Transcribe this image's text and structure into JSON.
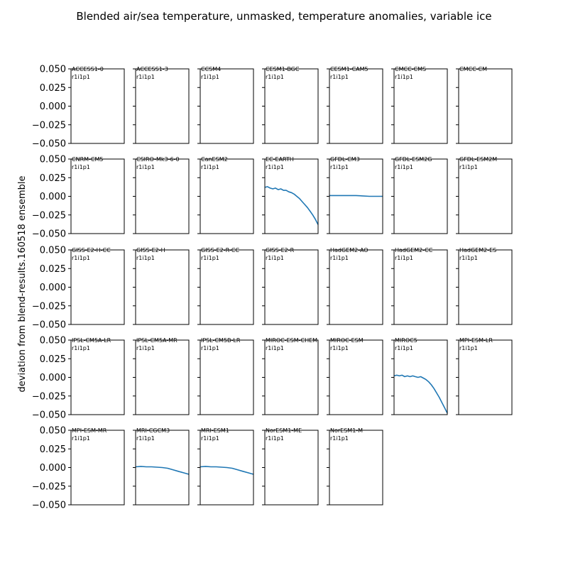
{
  "chart_data": {
    "type": "line",
    "title": "Blended air/sea temperature, unmasked, temperature anomalies, variable ice",
    "ylabel": "deviation from blend-results.160518 ensemble",
    "ylim": [
      -0.05,
      0.05
    ],
    "yticks": [
      "0.050",
      "0.025",
      "0.000",
      "−0.025",
      "−0.050"
    ],
    "ytick_values": [
      0.05,
      0.025,
      0.0,
      -0.025,
      -0.05
    ],
    "grid": false,
    "line_color": "#1f77b4",
    "panels": [
      {
        "model": "ACCESS1-0",
        "run": "r1i1p1",
        "series": []
      },
      {
        "model": "ACCESS1-3",
        "run": "r1i1p1",
        "series": []
      },
      {
        "model": "CCSM4",
        "run": "r1i1p1",
        "series": []
      },
      {
        "model": "CESM1-BGC",
        "run": "r1i1p1",
        "series": []
      },
      {
        "model": "CESM1-CAM5",
        "run": "r1i1p1",
        "series": []
      },
      {
        "model": "CMCC-CMS",
        "run": "r1i1p1",
        "series": []
      },
      {
        "model": "CMCC-CM",
        "run": "",
        "series": []
      },
      {
        "model": "CNRM-CM5",
        "run": "r1i1p1",
        "series": []
      },
      {
        "model": "CSIRO-Mk3-6-0",
        "run": "r1i1p1",
        "series": []
      },
      {
        "model": "CanESM2",
        "run": "r1i1p1",
        "series": []
      },
      {
        "model": "EC-EARTH",
        "run": "r1i1p1",
        "series": [
          [
            0.0,
            0.012
          ],
          [
            0.05,
            0.013
          ],
          [
            0.1,
            0.011
          ],
          [
            0.15,
            0.01
          ],
          [
            0.2,
            0.011
          ],
          [
            0.25,
            0.009
          ],
          [
            0.3,
            0.01
          ],
          [
            0.35,
            0.008
          ],
          [
            0.4,
            0.008
          ],
          [
            0.45,
            0.006
          ],
          [
            0.5,
            0.005
          ],
          [
            0.55,
            0.003
          ],
          [
            0.6,
            0.0
          ],
          [
            0.65,
            -0.003
          ],
          [
            0.7,
            -0.007
          ],
          [
            0.75,
            -0.011
          ],
          [
            0.8,
            -0.015
          ],
          [
            0.85,
            -0.02
          ],
          [
            0.9,
            -0.025
          ],
          [
            0.95,
            -0.031
          ],
          [
            1.0,
            -0.038
          ]
        ]
      },
      {
        "model": "GFDL-CM3",
        "run": "r1i1p1",
        "series": [
          [
            0.0,
            0.001
          ],
          [
            0.25,
            0.001
          ],
          [
            0.5,
            0.001
          ],
          [
            0.75,
            0.0
          ],
          [
            1.0,
            0.0
          ]
        ]
      },
      {
        "model": "GFDL-ESM2G",
        "run": "r1i1p1",
        "series": []
      },
      {
        "model": "GFDL-ESM2M",
        "run": "r1i1p1",
        "series": []
      },
      {
        "model": "GISS-E2-H-CC",
        "run": "r1i1p1",
        "series": []
      },
      {
        "model": "GISS-E2-H",
        "run": "r1i1p1",
        "series": []
      },
      {
        "model": "GISS-E2-R-CC",
        "run": "r1i1p1",
        "series": []
      },
      {
        "model": "GISS-E2-R",
        "run": "r1i1p1",
        "series": []
      },
      {
        "model": "HadGEM2-AO",
        "run": "r1i1p1",
        "series": []
      },
      {
        "model": "HadGEM2-CC",
        "run": "r1i1p1",
        "series": []
      },
      {
        "model": "HadGEM2-ES",
        "run": "r1i1p1",
        "series": []
      },
      {
        "model": "IPSL-CM5A-LR",
        "run": "r1i1p1",
        "series": []
      },
      {
        "model": "IPSL-CM5A-MR",
        "run": "r1i1p1",
        "series": []
      },
      {
        "model": "IPSL-CM5B-LR",
        "run": "r1i1p1",
        "series": []
      },
      {
        "model": "MIROC-ESM-CHEM",
        "run": "r1i1p1",
        "series": []
      },
      {
        "model": "MIROC-ESM",
        "run": "r1i1p1",
        "series": []
      },
      {
        "model": "MIROC5",
        "run": "r1i1p1",
        "series": [
          [
            0.0,
            0.002
          ],
          [
            0.05,
            0.003
          ],
          [
            0.1,
            0.002
          ],
          [
            0.15,
            0.003
          ],
          [
            0.2,
            0.001
          ],
          [
            0.25,
            0.002
          ],
          [
            0.3,
            0.001
          ],
          [
            0.35,
            0.002
          ],
          [
            0.4,
            0.001
          ],
          [
            0.45,
            0.0
          ],
          [
            0.5,
            0.001
          ],
          [
            0.55,
            -0.001
          ],
          [
            0.6,
            -0.003
          ],
          [
            0.65,
            -0.006
          ],
          [
            0.7,
            -0.01
          ],
          [
            0.75,
            -0.015
          ],
          [
            0.8,
            -0.021
          ],
          [
            0.85,
            -0.027
          ],
          [
            0.9,
            -0.034
          ],
          [
            0.95,
            -0.041
          ],
          [
            1.0,
            -0.048
          ]
        ]
      },
      {
        "model": "MPI-ESM-LR",
        "run": "r1i1p1",
        "series": []
      },
      {
        "model": "MPI-ESM-MR",
        "run": "r1i1p1",
        "series": []
      },
      {
        "model": "MRI-CGCM3",
        "run": "r1i1p1",
        "series": [
          [
            0.0,
            0.001
          ],
          [
            0.1,
            0.0015
          ],
          [
            0.2,
            0.001
          ],
          [
            0.3,
            0.001
          ],
          [
            0.4,
            0.0005
          ],
          [
            0.5,
            0.0
          ],
          [
            0.6,
            -0.001
          ],
          [
            0.7,
            -0.003
          ],
          [
            0.8,
            -0.005
          ],
          [
            0.9,
            -0.007
          ],
          [
            1.0,
            -0.009
          ]
        ]
      },
      {
        "model": "MRI-ESM1",
        "run": "r1i1p1",
        "series": [
          [
            0.0,
            0.001
          ],
          [
            0.1,
            0.0015
          ],
          [
            0.2,
            0.001
          ],
          [
            0.3,
            0.001
          ],
          [
            0.4,
            0.0005
          ],
          [
            0.5,
            0.0
          ],
          [
            0.6,
            -0.001
          ],
          [
            0.7,
            -0.003
          ],
          [
            0.8,
            -0.005
          ],
          [
            0.9,
            -0.007
          ],
          [
            1.0,
            -0.009
          ]
        ]
      },
      {
        "model": "NorESM1-ME",
        "run": "r1i1p1",
        "series": []
      },
      {
        "model": "NorESM1-M",
        "run": "r1i1p1",
        "series": []
      }
    ]
  }
}
